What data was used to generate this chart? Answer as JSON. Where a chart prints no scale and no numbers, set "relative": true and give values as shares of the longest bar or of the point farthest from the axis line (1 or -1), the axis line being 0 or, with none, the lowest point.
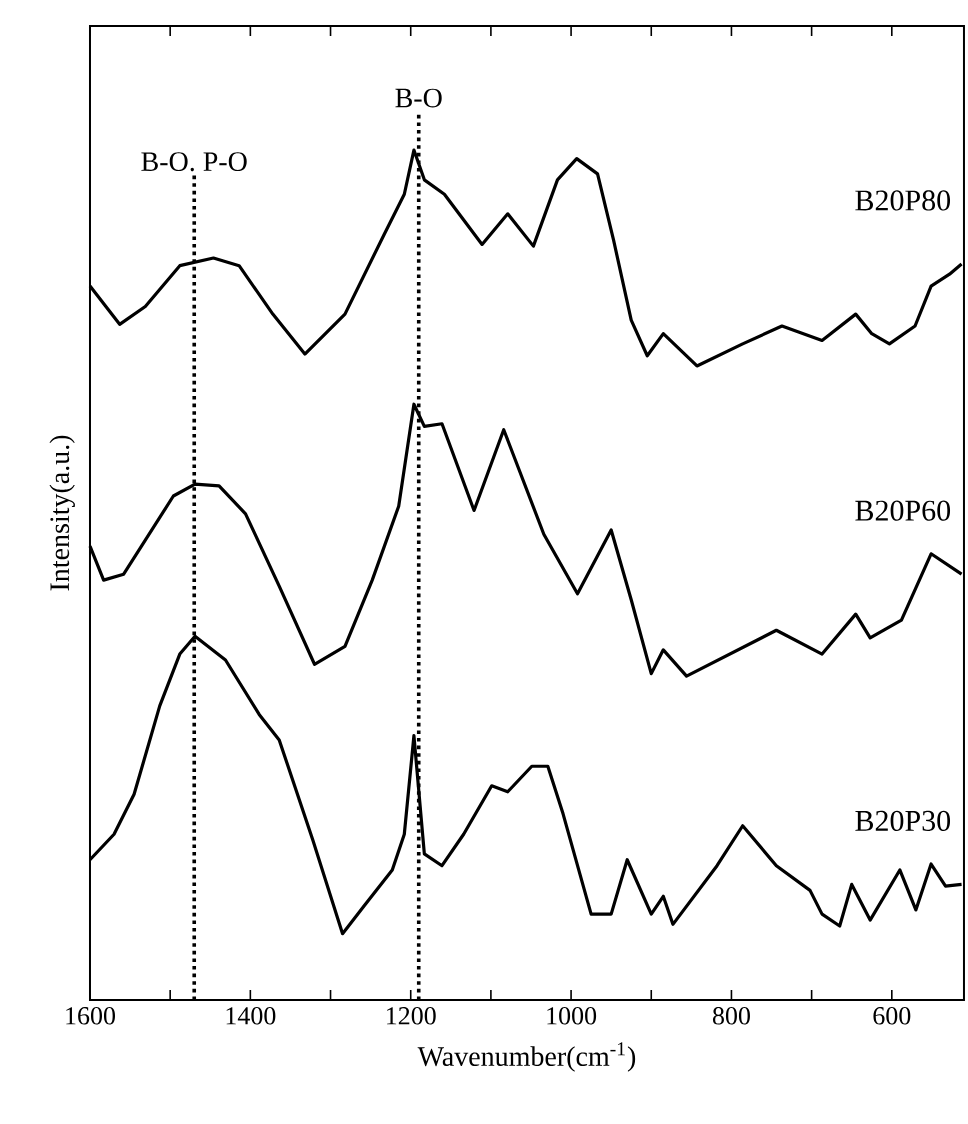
{
  "chart_data": {
    "type": "line",
    "relative": true,
    "xlabel": "Wavenumber(cm$^{-1}$)",
    "ylabel": "Intensity(a.u.)",
    "xlim": [
      1600,
      510
    ],
    "xticks": [
      1600,
      {
        "value": 1500,
        "label": null
      },
      1400,
      {
        "value": 1300,
        "label": null
      },
      1200,
      {
        "value": 1100,
        "label": null
      },
      1000,
      {
        "value": 900,
        "label": null
      },
      800,
      {
        "value": 700,
        "label": null
      },
      600
    ],
    "ref_lines": [
      {
        "axis": "x",
        "value": 1470,
        "label": "B-O. P-O",
        "color": "#000000",
        "line_style": "dotted"
      },
      {
        "axis": "x",
        "value": 1190,
        "label": "B-O",
        "color": "#000000",
        "line_style": "dotted"
      }
    ],
    "series": [
      {
        "name": "B20P80",
        "color": "#000000",
        "x": [
          1600,
          1563,
          1531,
          1488,
          1446,
          1414,
          1372,
          1332,
          1282,
          1233,
          1208,
          1196,
          1183,
          1158,
          1111,
          1079,
          1047,
          1017,
          993,
          967,
          947,
          925,
          905,
          885,
          843,
          786,
          737,
          687,
          645,
          625,
          603,
          571,
          551,
          528,
          513
        ],
        "values": [
          0.84,
          0.795,
          0.816,
          0.864,
          0.873,
          0.864,
          0.807,
          0.76,
          0.807,
          0.901,
          0.948,
          1.0,
          0.965,
          0.948,
          0.889,
          0.925,
          0.887,
          0.965,
          0.99,
          0.972,
          0.894,
          0.8,
          0.758,
          0.784,
          0.746,
          0.772,
          0.793,
          0.776,
          0.807,
          0.784,
          0.772,
          0.793,
          0.84,
          0.854,
          0.866
        ]
      },
      {
        "name": "B20P60",
        "color": "#000000",
        "x": [
          1600,
          1583,
          1558,
          1531,
          1496,
          1469,
          1439,
          1406,
          1364,
          1320,
          1282,
          1248,
          1215,
          1196,
          1183,
          1161,
          1121,
          1084,
          1034,
          992,
          950,
          925,
          900,
          885,
          856,
          744,
          687,
          645,
          627,
          588,
          551,
          513
        ],
        "values": [
          0.534,
          0.494,
          0.501,
          0.541,
          0.593,
          0.607,
          0.605,
          0.572,
          0.487,
          0.395,
          0.416,
          0.494,
          0.581,
          0.701,
          0.675,
          0.678,
          0.576,
          0.671,
          0.548,
          0.478,
          0.553,
          0.471,
          0.384,
          0.412,
          0.381,
          0.435,
          0.407,
          0.454,
          0.426,
          0.447,
          0.525,
          0.501
        ]
      },
      {
        "name": "B20P30",
        "color": "#000000",
        "x": [
          1600,
          1570,
          1545,
          1513,
          1488,
          1469,
          1431,
          1389,
          1364,
          1322,
          1285,
          1258,
          1223,
          1208,
          1196,
          1183,
          1161,
          1134,
          1099,
          1079,
          1049,
          1029,
          1010,
          975,
          950,
          930,
          900,
          885,
          873,
          818,
          786,
          744,
          702,
          687,
          665,
          650,
          627,
          590,
          570,
          551,
          533,
          513
        ],
        "values": [
          0.165,
          0.195,
          0.242,
          0.346,
          0.407,
          0.428,
          0.4,
          0.336,
          0.306,
          0.188,
          0.078,
          0.111,
          0.153,
          0.195,
          0.311,
          0.172,
          0.158,
          0.195,
          0.252,
          0.245,
          0.275,
          0.275,
          0.219,
          0.101,
          0.101,
          0.165,
          0.101,
          0.122,
          0.089,
          0.158,
          0.205,
          0.158,
          0.129,
          0.101,
          0.087,
          0.136,
          0.094,
          0.153,
          0.106,
          0.16,
          0.134,
          0.136
        ]
      }
    ]
  }
}
